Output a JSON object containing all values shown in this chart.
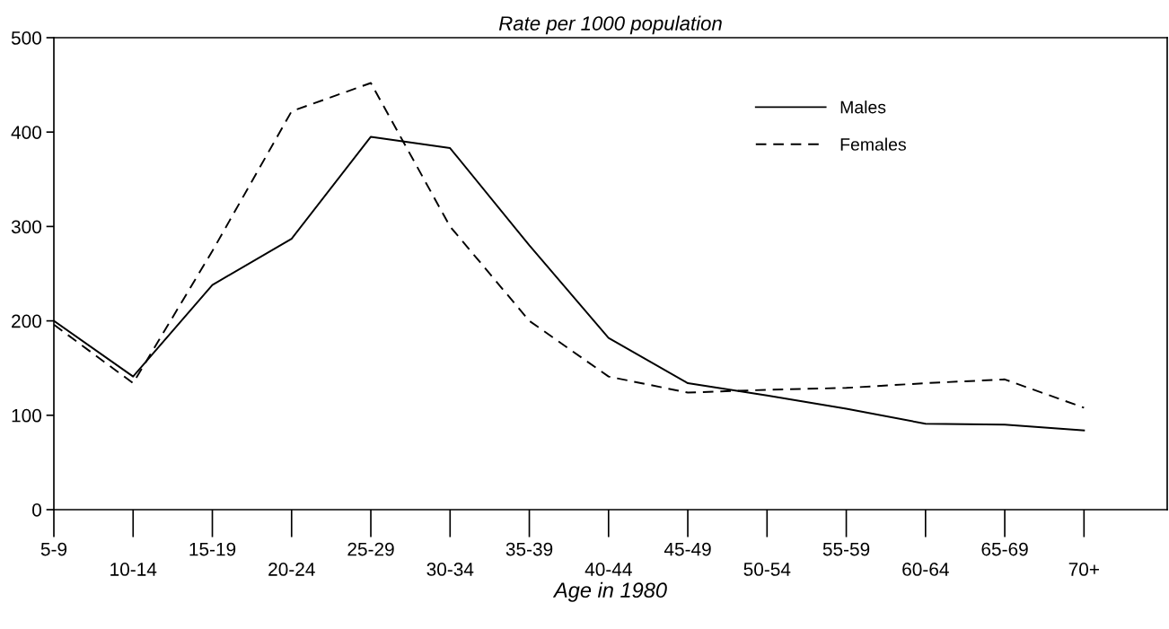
{
  "chart_data": {
    "type": "line",
    "title": "Rate per 1000 population",
    "xlabel": "Age in 1980",
    "categories": [
      "5-9",
      "10-14",
      "15-19",
      "20-24",
      "25-29",
      "30-34",
      "35-39",
      "40-44",
      "45-49",
      "50-54",
      "55-59",
      "60-64",
      "65-69",
      "70+"
    ],
    "series": [
      {
        "name": "Males",
        "color": "#000000",
        "line_style": "solid",
        "values": [
          200,
          141,
          238,
          287,
          395,
          383,
          280,
          182,
          134,
          121,
          107,
          91,
          90,
          84
        ]
      },
      {
        "name": "Females",
        "color": "#000000",
        "line_style": "dashed",
        "values": [
          196,
          134,
          274,
          422,
          452,
          300,
          200,
          141,
          124,
          127,
          129,
          134,
          138,
          108
        ]
      }
    ],
    "ylim": [
      0,
      500
    ],
    "yticks": [
      0,
      100,
      200,
      300,
      400,
      500
    ],
    "grid": false,
    "legend": "top right",
    "marker": "none"
  }
}
